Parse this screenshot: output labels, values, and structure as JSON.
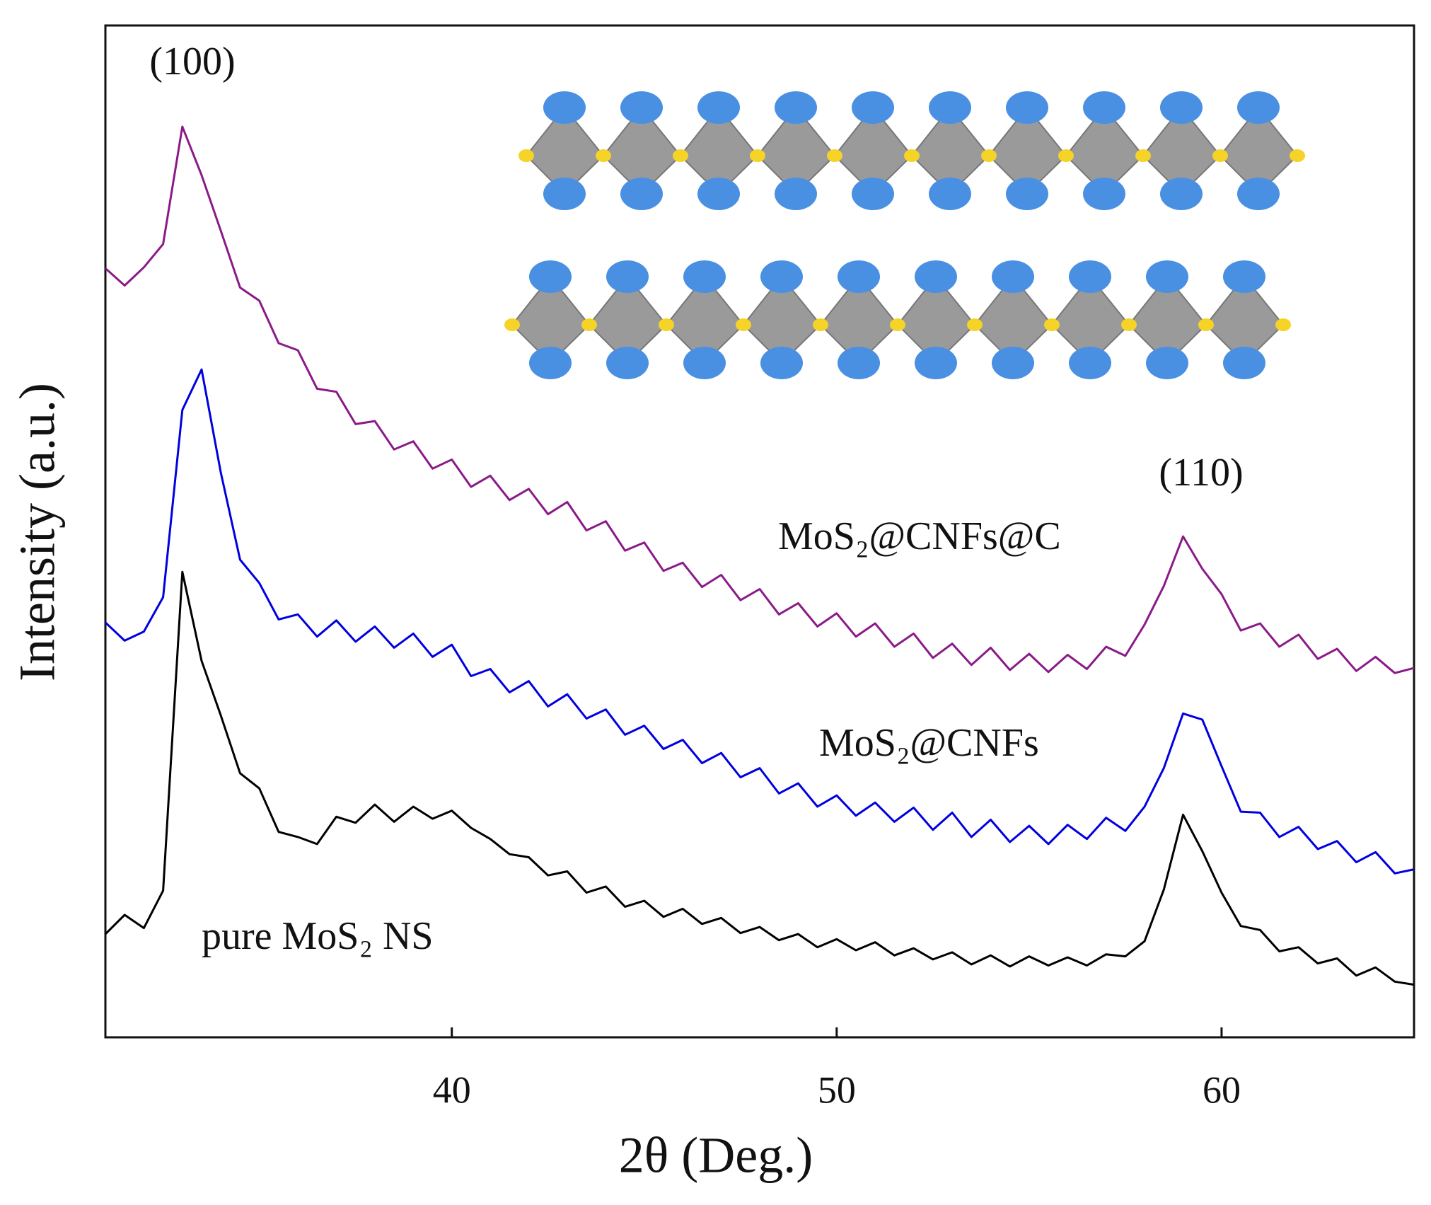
{
  "chart_data": {
    "type": "line",
    "xlabel": "2θ (Deg.)",
    "ylabel": "Intensity (a.u.)",
    "xlim": [
      31,
      65
    ],
    "xticks": [
      40,
      50,
      60
    ],
    "ylim": [
      0,
      100
    ],
    "annotations": [
      "(100)",
      "(110)"
    ],
    "x": [
      31,
      31.5,
      32,
      32.5,
      33,
      33.5,
      34,
      34.5,
      35,
      35.5,
      36,
      36.5,
      37,
      37.5,
      38,
      38.5,
      39,
      39.5,
      40,
      40.5,
      41,
      41.5,
      42,
      42.5,
      43,
      43.5,
      44,
      44.5,
      45,
      45.5,
      46,
      46.5,
      47,
      47.5,
      48,
      48.5,
      49,
      49.5,
      50,
      50.5,
      51,
      51.5,
      52,
      52.5,
      53,
      53.5,
      54,
      54.5,
      55,
      55.5,
      56,
      56.5,
      57,
      57.5,
      58,
      58.5,
      59,
      59.5,
      60,
      60.5,
      61,
      61.5,
      62,
      62.5,
      63,
      63.5,
      64,
      64.5,
      65
    ],
    "series": [
      {
        "name": "pure MoS₂ NS",
        "color": "#000000",
        "values": [
          10.2,
          12.1,
          10.8,
          14.5,
          46,
          37.2,
          31.8,
          26.1,
          24.6,
          20.3,
          19.8,
          19.1,
          21.8,
          21.2,
          23,
          21.3,
          22.8,
          21.6,
          22.4,
          20.7,
          19.6,
          18.1,
          17.8,
          16,
          16.4,
          14.3,
          14.9,
          12.9,
          13.5,
          11.9,
          12.7,
          11.2,
          11.8,
          10.3,
          10.9,
          9.6,
          10.2,
          8.9,
          9.7,
          8.6,
          9.4,
          8.1,
          8.8,
          7.7,
          8.4,
          7.2,
          8.1,
          7.0,
          8.0,
          7.1,
          7.9,
          7.1,
          8.2,
          8.0,
          9.5,
          14.6,
          22,
          18.4,
          14.3,
          11,
          10.6,
          8.5,
          8.9,
          7.3,
          7.8,
          6.1,
          6.9,
          5.5,
          5.2
        ]
      },
      {
        "name": "MoS₂@CNFs",
        "color": "#0000e0",
        "values": [
          41,
          39.2,
          40.1,
          43.5,
          62,
          66,
          55.8,
          47.2,
          44.9,
          41.3,
          41.8,
          39.6,
          41.2,
          39.1,
          40.6,
          38.5,
          39.9,
          37.6,
          38.8,
          35.7,
          36.4,
          34.1,
          35.2,
          32.7,
          33.9,
          31.5,
          32.4,
          29.9,
          30.8,
          28.5,
          29.4,
          27.1,
          28.1,
          25.7,
          26.6,
          24.1,
          25.1,
          22.8,
          23.9,
          21.9,
          23.2,
          21.3,
          22.7,
          20.5,
          22.2,
          19.8,
          21.5,
          19.3,
          20.9,
          19.1,
          21,
          19.6,
          21.7,
          20.4,
          22.8,
          26.6,
          32,
          31.4,
          26.8,
          22.3,
          22.2,
          19.8,
          20.8,
          18.6,
          19.4,
          17.3,
          18.3,
          16.2,
          16.6
        ]
      },
      {
        "name": "MoS₂@CNFs@C",
        "color": "#8b1a89",
        "values": [
          76,
          74.3,
          76.1,
          78.4,
          90,
          85.2,
          79.7,
          74.1,
          72.8,
          68.6,
          67.9,
          64.1,
          63.8,
          60.6,
          60.9,
          58.1,
          58.9,
          56.2,
          57.1,
          54.4,
          55.5,
          53.1,
          54.2,
          51.7,
          52.9,
          50.1,
          51,
          48.1,
          48.9,
          46.1,
          46.9,
          44.5,
          45.7,
          43.2,
          44.3,
          41.8,
          42.9,
          40.6,
          41.9,
          39.6,
          40.9,
          38.6,
          39.9,
          37.5,
          38.9,
          36.8,
          38.5,
          36.3,
          37.9,
          36.1,
          37.8,
          36.4,
          38.6,
          37.7,
          40.8,
          44.6,
          49.5,
          46.3,
          43.8,
          40.2,
          40.9,
          38.6,
          39.8,
          37.4,
          38.4,
          36.2,
          37.6,
          36,
          36.5
        ]
      }
    ]
  }
}
